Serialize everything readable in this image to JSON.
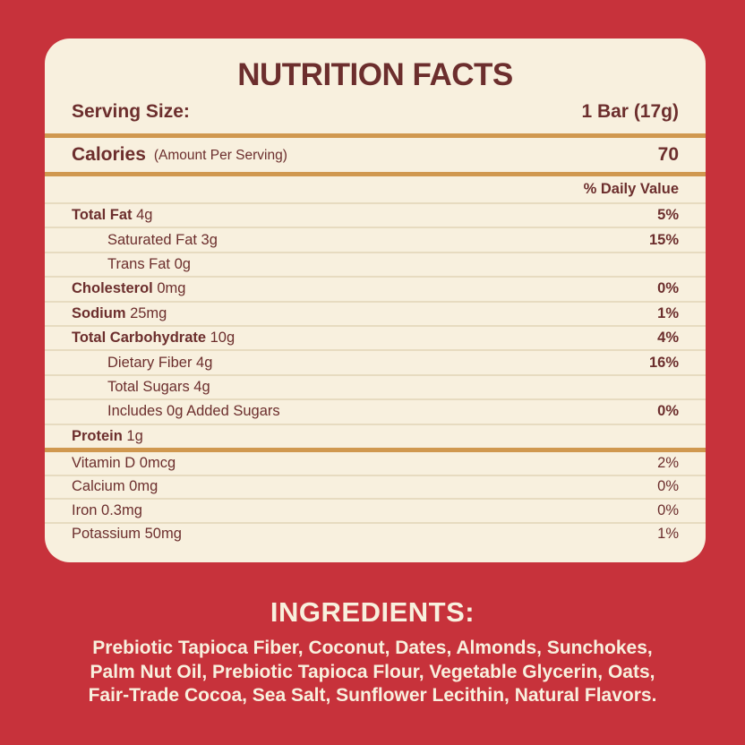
{
  "colors": {
    "background_red": "#C7323B",
    "card_cream": "#F8F0DE",
    "text_maroon": "#6C2E2D",
    "divider_gold": "#D0984F",
    "divider_light": "#E7DBC0"
  },
  "label": {
    "title": "NUTRITION FACTS",
    "serving_size_label": "Serving Size:",
    "serving_size_value": "1 Bar (17g)",
    "calories_label": "Calories",
    "calories_note": "(Amount Per Serving)",
    "calories_value": "70",
    "daily_value_header": "% Daily Value",
    "rows": [
      {
        "name": "Total Fat",
        "amount": "4g",
        "dv": "5%",
        "bold": true,
        "indent": false
      },
      {
        "name": "Saturated Fat",
        "amount": "3g",
        "dv": "15%",
        "bold": false,
        "indent": true
      },
      {
        "name": "Trans Fat",
        "amount": "0g",
        "dv": "",
        "bold": false,
        "indent": true
      },
      {
        "name": "Cholesterol",
        "amount": "0mg",
        "dv": "0%",
        "bold": true,
        "indent": false
      },
      {
        "name": "Sodium",
        "amount": "25mg",
        "dv": "1%",
        "bold": true,
        "indent": false
      },
      {
        "name": "Total Carbohydrate",
        "amount": "10g",
        "dv": "4%",
        "bold": true,
        "indent": false
      },
      {
        "name": "Dietary Fiber",
        "amount": "4g",
        "dv": "16%",
        "bold": false,
        "indent": true
      },
      {
        "name": "Total Sugars",
        "amount": "4g",
        "dv": "",
        "bold": false,
        "indent": true
      },
      {
        "name": "Includes 0g Added Sugars",
        "amount": "",
        "dv": "0%",
        "bold": false,
        "indent": true
      },
      {
        "name": "Protein",
        "amount": "1g",
        "dv": "",
        "bold": true,
        "indent": false
      }
    ],
    "vitamins": [
      {
        "name": "Vitamin D 0mcg",
        "dv": "2%"
      },
      {
        "name": "Calcium 0mg",
        "dv": "0%"
      },
      {
        "name": "Iron 0.3mg",
        "dv": "0%"
      },
      {
        "name": "Potassium 50mg",
        "dv": "1%"
      }
    ]
  },
  "ingredients": {
    "title": "INGREDIENTS:",
    "lines": [
      "Prebiotic Tapioca Fiber, Coconut, Dates, Almonds, Sunchokes,",
      "Palm Nut Oil, Prebiotic Tapioca Flour, Vegetable Glycerin, Oats,",
      "Fair-Trade Cocoa, Sea Salt, Sunflower Lecithin, Natural Flavors."
    ]
  }
}
